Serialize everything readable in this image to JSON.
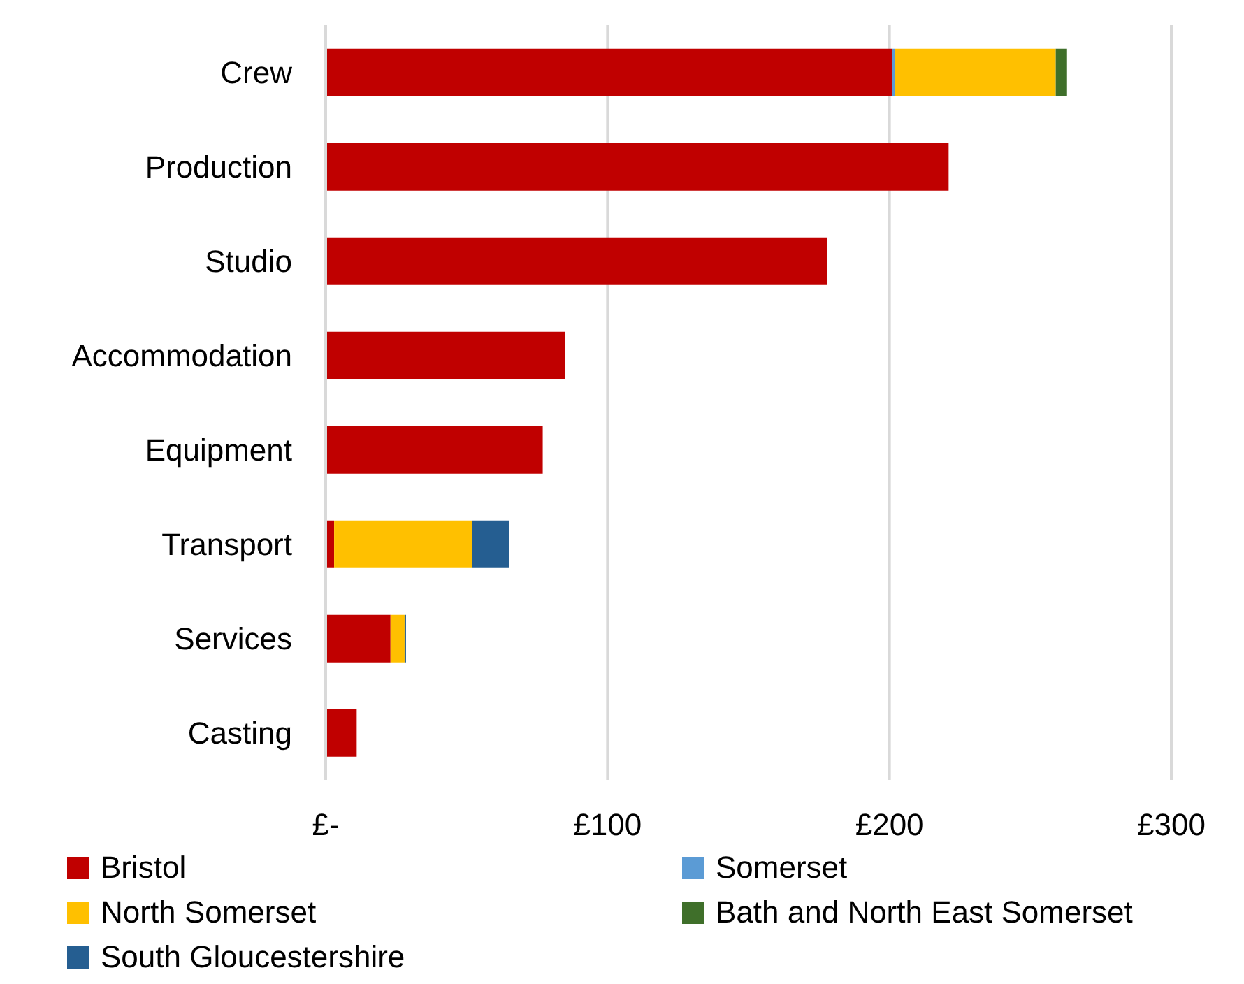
{
  "chart_data": {
    "type": "bar",
    "orientation": "horizontal",
    "stacked": true,
    "categories": [
      "Crew",
      "Production",
      "Studio",
      "Accommodation",
      "Equipment",
      "Transport",
      "Services",
      "Casting"
    ],
    "series": [
      {
        "name": "Bristol",
        "color": "#c00000",
        "values": [
          201,
          221,
          178,
          85,
          77,
          3,
          23,
          11
        ]
      },
      {
        "name": "Somerset",
        "color": "#5b9bd5",
        "values": [
          1,
          null,
          null,
          null,
          null,
          null,
          null,
          null
        ]
      },
      {
        "name": "North Somerset",
        "color": "#ffc000",
        "values": [
          57,
          null,
          null,
          null,
          null,
          49,
          5,
          null
        ]
      },
      {
        "name": "Bath and North East Somerset",
        "color": "#3f6f2a",
        "values": [
          4,
          null,
          null,
          null,
          null,
          null,
          null,
          null
        ]
      },
      {
        "name": "South Gloucestershire",
        "color": "#255e91",
        "values": [
          null,
          null,
          null,
          null,
          null,
          13,
          0.5,
          null
        ]
      }
    ],
    "xlim": [
      0,
      300
    ],
    "xticks": [
      {
        "value": 0,
        "label": "£-"
      },
      {
        "value": 100,
        "label": "£100"
      },
      {
        "value": 200,
        "label": "£200"
      },
      {
        "value": 300,
        "label": "£300"
      }
    ],
    "grid": "x",
    "legend": "bottom"
  }
}
